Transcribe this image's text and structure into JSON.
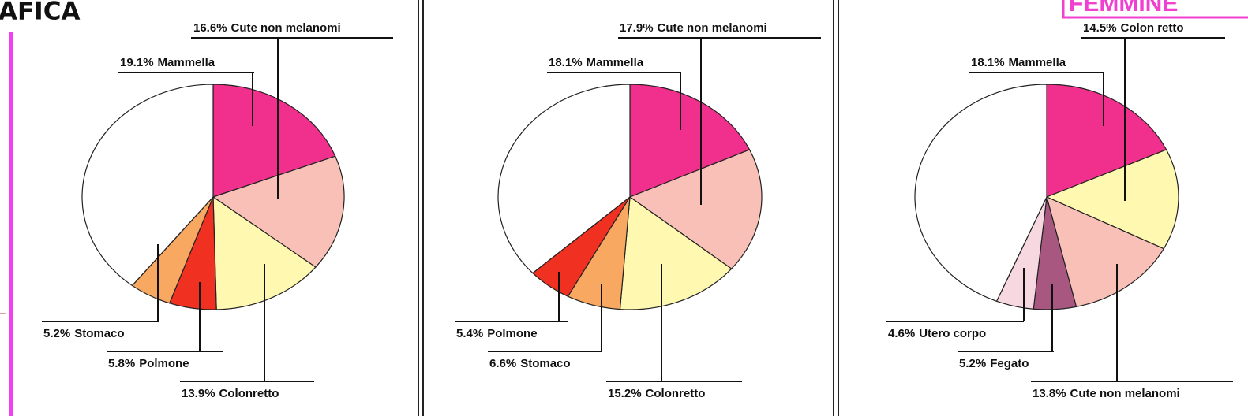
{
  "header": {
    "title": "AFICA",
    "tag": "FEMMINE"
  },
  "chart_data": [
    {
      "type": "pie",
      "categories": [
        "Mammella",
        "Cute non melanomi",
        "Colonretto",
        "Polmone",
        "Stomaco",
        null
      ],
      "values": [
        19.1,
        16.6,
        13.9,
        5.8,
        5.2,
        39.4
      ],
      "value_labels": [
        "19.1%",
        "16.6%",
        "13.9%",
        "5.8%",
        "5.2%",
        null
      ],
      "colors": [
        "#f0308c",
        "#f9c0b8",
        "#fff8b0",
        "#f03020",
        "#f8a860",
        "#ffffff"
      ]
    },
    {
      "type": "pie",
      "categories": [
        "Mammella",
        "Cute non melanomi",
        "Colonretto",
        "Stomaco",
        "Polmone",
        null
      ],
      "values": [
        18.1,
        17.9,
        15.2,
        6.6,
        5.4,
        36.8
      ],
      "value_labels": [
        "18.1%",
        "17.9%",
        "15.2%",
        "6.6%",
        "5.4%",
        null
      ],
      "colors": [
        "#f0308c",
        "#f9c0b8",
        "#fff8b0",
        "#f8a860",
        "#f03020",
        "#ffffff"
      ]
    },
    {
      "type": "pie",
      "categories": [
        "Mammella",
        "Colon retto",
        "Cute non melanomi",
        "Fegato",
        "Utero corpo",
        null
      ],
      "values": [
        18.1,
        14.5,
        13.8,
        5.2,
        4.6,
        43.8
      ],
      "value_labels": [
        "18.1%",
        "14.5%",
        "13.8%",
        "5.2%",
        "4.6%",
        null
      ],
      "colors": [
        "#f0308c",
        "#fff8b0",
        "#f9c0b8",
        "#a85880",
        "#f8d8e0",
        "#ffffff"
      ]
    }
  ]
}
